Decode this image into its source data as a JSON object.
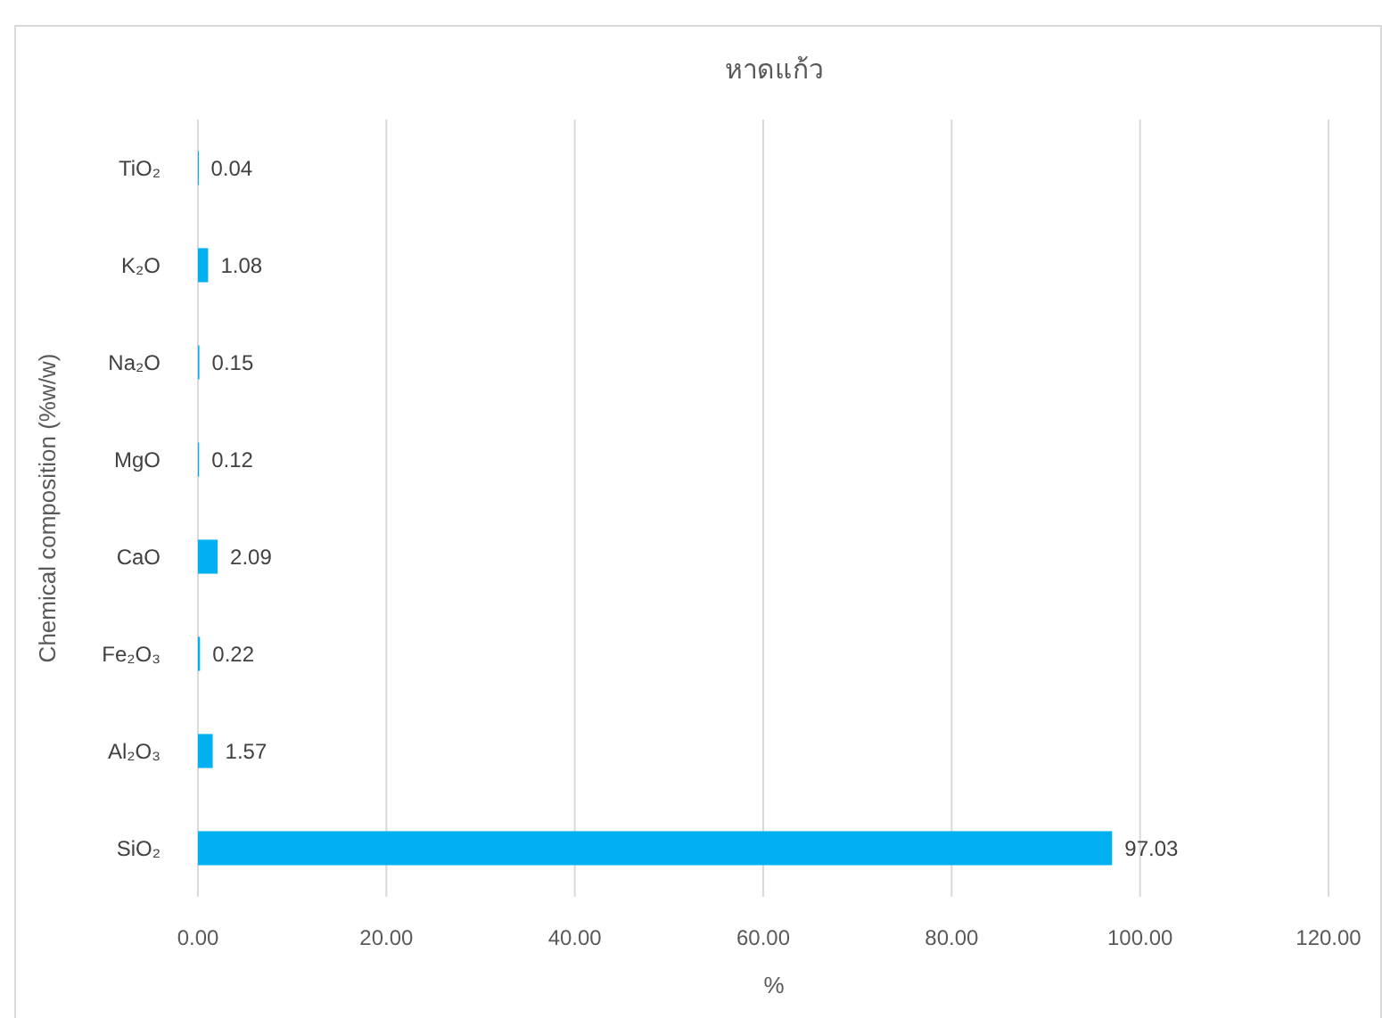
{
  "chart_data": {
    "type": "bar",
    "orientation": "horizontal",
    "title": "หาดแก้ว",
    "xlabel": "%",
    "ylabel": "Chemical composition (%w/w)",
    "categories": [
      "TiO₂",
      "K₂O",
      "Na₂O",
      "MgO",
      "CaO",
      "Fe₂O₃",
      "Al₂O₃",
      "SiO₂"
    ],
    "values": [
      0.04,
      1.08,
      0.15,
      0.12,
      2.09,
      0.22,
      1.57,
      97.03
    ],
    "color": "#00b0f0",
    "xlim": [
      0,
      120
    ],
    "xticks": [
      {
        "value": 0,
        "label": "0.00"
      },
      {
        "value": 20,
        "label": "20.00"
      },
      {
        "value": 40,
        "label": "40.00"
      },
      {
        "value": 60,
        "label": "60.00"
      },
      {
        "value": 80,
        "label": "80.00"
      },
      {
        "value": 100,
        "label": "100.00"
      },
      {
        "value": 120,
        "label": "120.00"
      }
    ],
    "grid": "x",
    "data_labels": true
  }
}
